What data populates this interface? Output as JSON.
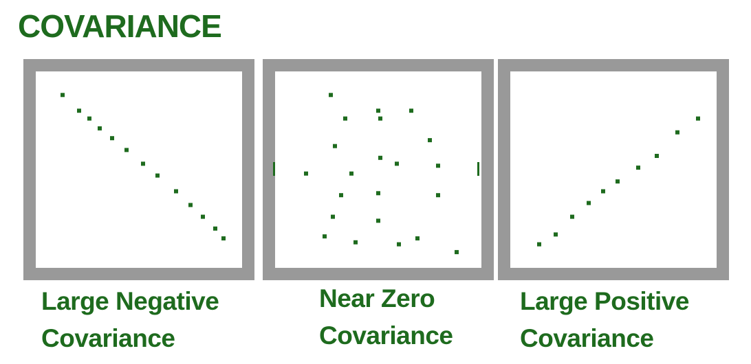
{
  "title": "COVARIANCE",
  "colors": {
    "accent": "#1e6b1e",
    "frame": "#999999",
    "point": "#1e6b1e"
  },
  "panels": [
    {
      "caption_line1": "Large Negative",
      "caption_line2": "Covariance",
      "points": [
        [
          0.13,
          0.12
        ],
        [
          0.21,
          0.2
        ],
        [
          0.26,
          0.24
        ],
        [
          0.31,
          0.29
        ],
        [
          0.37,
          0.34
        ],
        [
          0.44,
          0.4
        ],
        [
          0.52,
          0.47
        ],
        [
          0.59,
          0.53
        ],
        [
          0.68,
          0.61
        ],
        [
          0.75,
          0.68
        ],
        [
          0.81,
          0.74
        ],
        [
          0.87,
          0.8
        ],
        [
          0.91,
          0.85
        ]
      ]
    },
    {
      "caption_line1": "Near Zero",
      "caption_line2": "Covariance",
      "points": [
        [
          0.27,
          0.12
        ],
        [
          0.5,
          0.2
        ],
        [
          0.66,
          0.2
        ],
        [
          0.34,
          0.24
        ],
        [
          0.51,
          0.24
        ],
        [
          0.75,
          0.35
        ],
        [
          0.29,
          0.38
        ],
        [
          0.51,
          0.44
        ],
        [
          0.59,
          0.47
        ],
        [
          0.79,
          0.48
        ],
        [
          0.15,
          0.52
        ],
        [
          0.37,
          0.52
        ],
        [
          0.32,
          0.63
        ],
        [
          0.5,
          0.62
        ],
        [
          0.79,
          0.63
        ],
        [
          0.28,
          0.74
        ],
        [
          0.5,
          0.76
        ],
        [
          0.24,
          0.84
        ],
        [
          0.39,
          0.87
        ],
        [
          0.6,
          0.88
        ],
        [
          0.69,
          0.85
        ],
        [
          0.88,
          0.92
        ]
      ]
    },
    {
      "caption_line1": "Large Positive",
      "caption_line2": "Covariance",
      "points": [
        [
          0.14,
          0.88
        ],
        [
          0.22,
          0.83
        ],
        [
          0.3,
          0.74
        ],
        [
          0.38,
          0.67
        ],
        [
          0.45,
          0.61
        ],
        [
          0.52,
          0.56
        ],
        [
          0.62,
          0.49
        ],
        [
          0.71,
          0.43
        ],
        [
          0.81,
          0.31
        ],
        [
          0.91,
          0.24
        ]
      ]
    }
  ]
}
